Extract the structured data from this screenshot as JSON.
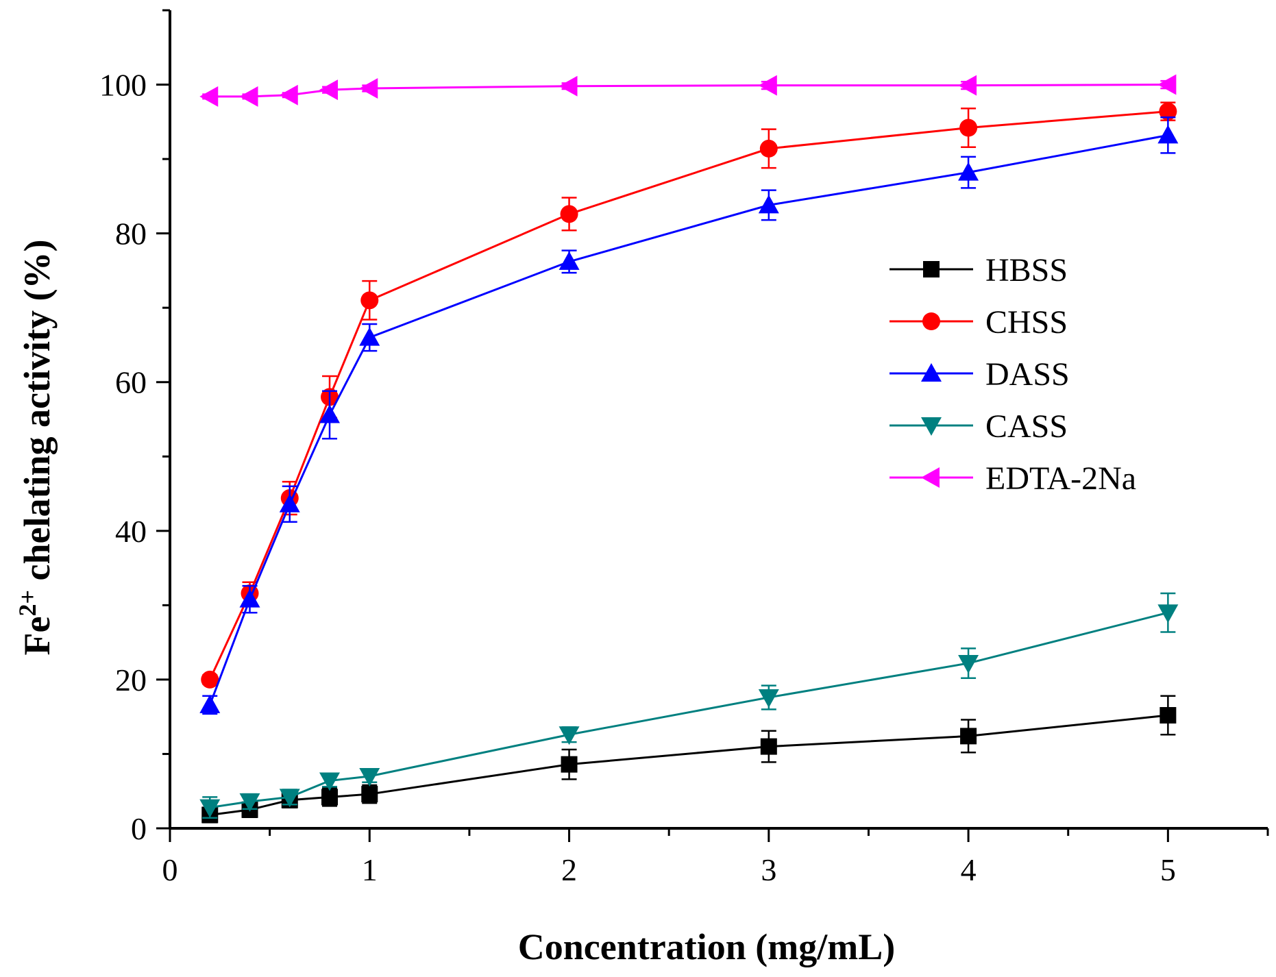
{
  "chart_data": {
    "type": "line",
    "title": "",
    "xlabel": "Concentration (mg/mL)",
    "ylabel": {
      "prefix": "Fe",
      "superscript": "2+",
      "suffix": " chelating activity (%)"
    },
    "xlim": [
      0,
      5.5
    ],
    "ylim": [
      0,
      110
    ],
    "xticks": [
      0,
      1,
      2,
      3,
      4,
      5
    ],
    "yticks": [
      0,
      20,
      40,
      60,
      80,
      100
    ],
    "x": [
      0.2,
      0.4,
      0.6,
      0.8,
      1,
      2,
      3,
      4,
      5
    ],
    "legend_position": "center-right",
    "series": [
      {
        "name": "HBSS",
        "color": "#000000",
        "marker": "square",
        "values": [
          1.8,
          2.5,
          3.8,
          4.2,
          4.6,
          8.6,
          11.0,
          12.4,
          15.2
        ],
        "errors": [
          1.0,
          1.0,
          1.0,
          1.2,
          1.2,
          2.0,
          2.1,
          2.2,
          2.6
        ]
      },
      {
        "name": "CHSS",
        "color": "#ff0000",
        "marker": "circle",
        "values": [
          20.0,
          31.6,
          44.4,
          58.0,
          71.0,
          82.6,
          91.4,
          94.2,
          96.4
        ],
        "errors": [
          0.6,
          1.5,
          2.2,
          2.8,
          2.6,
          2.2,
          2.6,
          2.6,
          1.2
        ]
      },
      {
        "name": "DASS",
        "color": "#0000ff",
        "marker": "triangle-up",
        "values": [
          16.6,
          30.8,
          43.6,
          55.6,
          66.0,
          76.2,
          83.8,
          88.2,
          93.2
        ],
        "errors": [
          1.2,
          1.8,
          2.4,
          3.2,
          1.8,
          1.5,
          2.0,
          2.1,
          2.4
        ]
      },
      {
        "name": "CASS",
        "color": "#008080",
        "marker": "triangle-down",
        "values": [
          2.8,
          3.6,
          4.2,
          6.4,
          7.0,
          12.6,
          17.6,
          22.2,
          29.0
        ],
        "errors": [
          1.4,
          1.0,
          1.0,
          0.8,
          0.8,
          1.0,
          1.6,
          2.0,
          2.6
        ]
      },
      {
        "name": "EDTA-2Na",
        "color": "#ff00ff",
        "marker": "triangle-left",
        "values": [
          98.4,
          98.4,
          98.6,
          99.3,
          99.5,
          99.8,
          99.9,
          99.9,
          100.0
        ],
        "errors": [
          0.3,
          0.3,
          0.3,
          0.4,
          0.4,
          0.4,
          0.5,
          0.5,
          0.5
        ]
      }
    ]
  }
}
